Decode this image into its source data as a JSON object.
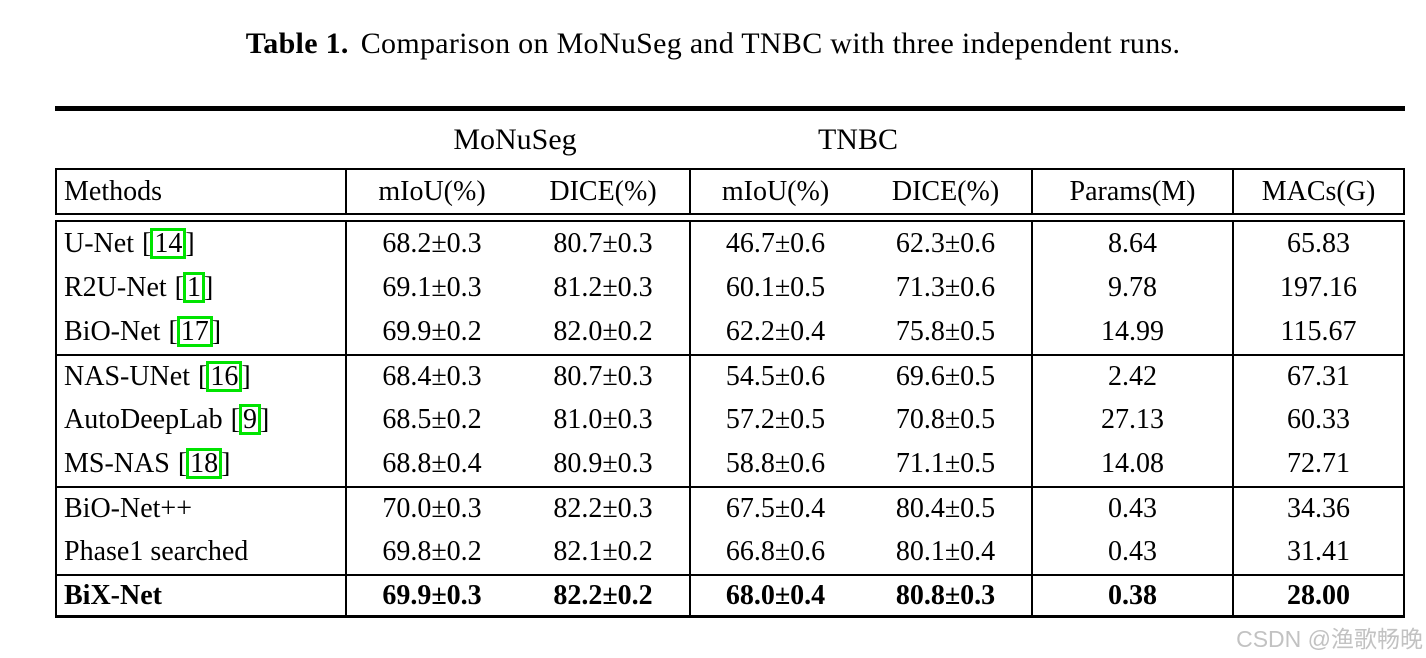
{
  "caption": {
    "label": "Table 1.",
    "text": "Comparison on MoNuSeg and TNBC with three independent runs."
  },
  "table": {
    "dataset_headers": [
      "MoNuSeg",
      "TNBC"
    ],
    "col_headers": [
      "Methods",
      "mIoU(%)",
      "DICE(%)",
      "mIoU(%)",
      "DICE(%)",
      "Params(M)",
      "MACs(G)"
    ],
    "rows": [
      {
        "method": "U-Net",
        "cite": "14",
        "values": [
          "68.2±0.3",
          "80.7±0.3",
          "46.7±0.6",
          "62.3±0.6",
          "8.64",
          "65.83"
        ],
        "rule_above": false,
        "bold": false
      },
      {
        "method": "R2U-Net",
        "cite": "1",
        "values": [
          "69.1±0.3",
          "81.2±0.3",
          "60.1±0.5",
          "71.3±0.6",
          "9.78",
          "197.16"
        ],
        "rule_above": false,
        "bold": false
      },
      {
        "method": "BiO-Net",
        "cite": "17",
        "values": [
          "69.9±0.2",
          "82.0±0.2",
          "62.2±0.4",
          "75.8±0.5",
          "14.99",
          "115.67"
        ],
        "rule_above": false,
        "bold": false
      },
      {
        "method": "NAS-UNet",
        "cite": "16",
        "values": [
          "68.4±0.3",
          "80.7±0.3",
          "54.5±0.6",
          "69.6±0.5",
          "2.42",
          "67.31"
        ],
        "rule_above": true,
        "bold": false
      },
      {
        "method": "AutoDeepLab",
        "cite": "9",
        "values": [
          "68.5±0.2",
          "81.0±0.3",
          "57.2±0.5",
          "70.8±0.5",
          "27.13",
          "60.33"
        ],
        "rule_above": false,
        "bold": false
      },
      {
        "method": "MS-NAS",
        "cite": "18",
        "values": [
          "68.8±0.4",
          "80.9±0.3",
          "58.8±0.6",
          "71.1±0.5",
          "14.08",
          "72.71"
        ],
        "rule_above": false,
        "bold": false
      },
      {
        "method": "BiO-Net++",
        "cite": null,
        "values": [
          "70.0±0.3",
          "82.2±0.3",
          "67.5±0.4",
          "80.4±0.5",
          "0.43",
          "34.36"
        ],
        "rule_above": true,
        "bold": false
      },
      {
        "method": "Phase1 searched",
        "cite": null,
        "values": [
          "69.8±0.2",
          "82.1±0.2",
          "66.8±0.6",
          "80.1±0.4",
          "0.43",
          "31.41"
        ],
        "rule_above": false,
        "bold": false
      },
      {
        "method": "BiX-Net",
        "cite": null,
        "values": [
          "69.9±0.3",
          "82.2±0.2",
          "68.0±0.4",
          "80.8±0.3",
          "0.38",
          "28.00"
        ],
        "rule_above": true,
        "bold": true
      }
    ]
  },
  "watermark": "CSDN @渔歌畅晚",
  "colors": {
    "citation_box": "#00e400",
    "watermark": "#c2c2c2",
    "text": "#000000",
    "background": "#ffffff"
  }
}
